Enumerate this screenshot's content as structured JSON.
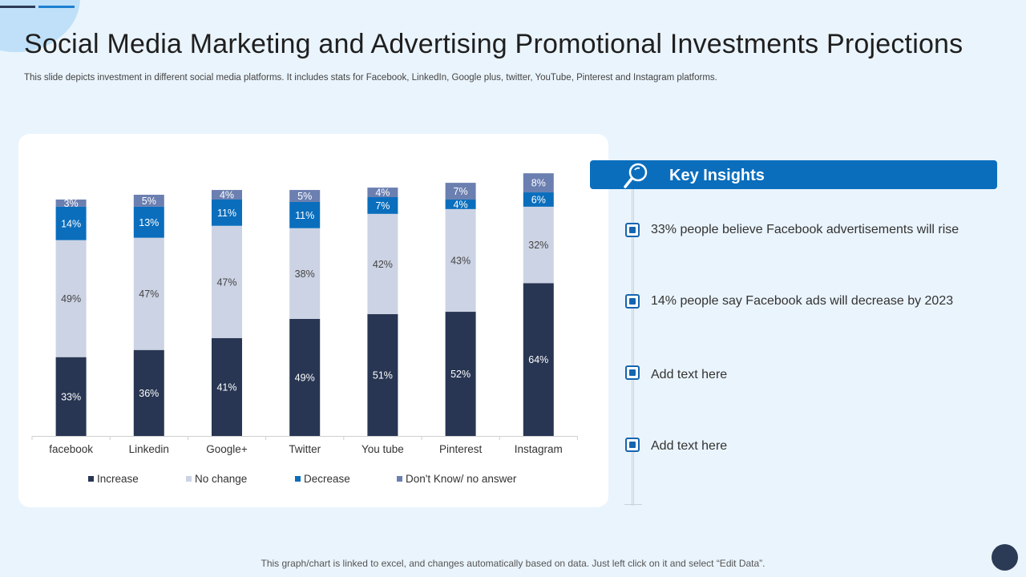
{
  "slide": {
    "title": "Social Media Marketing and Advertising Promotional Investments Projections",
    "subtitle": "This slide depicts investment in different social media platforms. It includes stats for Facebook, LinkedIn, Google plus, twitter, YouTube, Pinterest and Instagram platforms.",
    "footnote": "This graph/chart is linked to excel, and changes automatically based on data.  Just left click on it and select “Edit Data”."
  },
  "insights": {
    "title": "Key Insights",
    "icon": "magnifier-icon",
    "items": [
      "33% people believe Facebook advertisements will rise",
      "14% people say  Facebook ads will decrease by 2023",
      "Add text here",
      "Add text here"
    ]
  },
  "colors": {
    "increase": "#283653",
    "no_change": "#ccd3e4",
    "decrease": "#0a6ebd",
    "dont_know": "#6b7fb0",
    "accent": "#0a6ebd"
  },
  "chart_data": {
    "type": "bar",
    "stacked": true,
    "categories": [
      "facebook",
      "Linkedin",
      "Google+",
      "Twitter",
      "You tube",
      "Pinterest",
      "Instagram"
    ],
    "series": [
      {
        "name": "Increase",
        "values": [
          33,
          36,
          41,
          49,
          51,
          52,
          64
        ]
      },
      {
        "name": "No change",
        "values": [
          49,
          47,
          47,
          38,
          42,
          43,
          32
        ]
      },
      {
        "name": "Decrease",
        "values": [
          14,
          13,
          11,
          11,
          7,
          4,
          6
        ]
      },
      {
        "name": "Don't Know/ no answer",
        "values": [
          3,
          5,
          4,
          5,
          4,
          7,
          8
        ]
      }
    ],
    "value_suffix": "%",
    "legend_position": "bottom",
    "grid": false
  }
}
